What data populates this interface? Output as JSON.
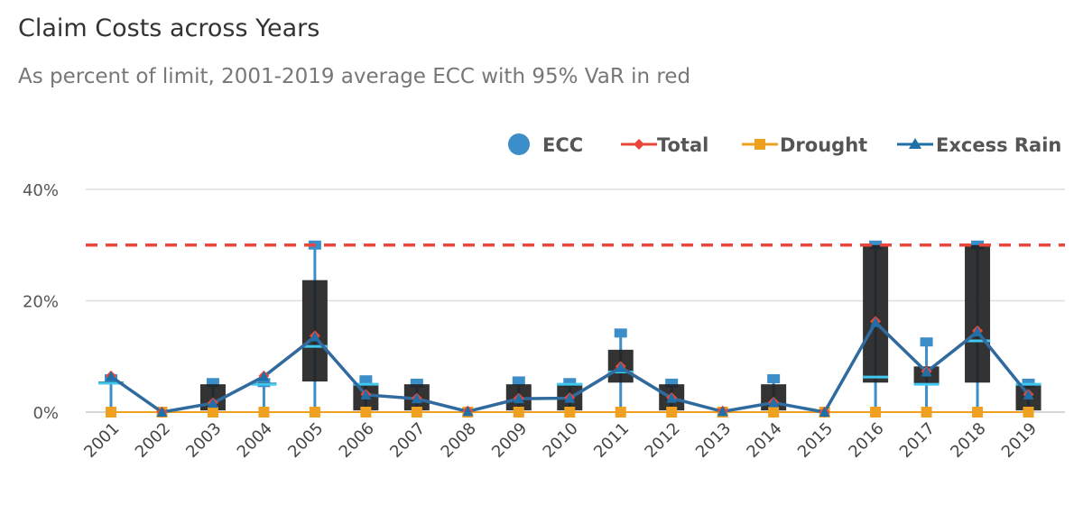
{
  "chart_data": {
    "type": "boxplot-line",
    "title": "Claim Costs across Years",
    "subtitle": "As percent of limit, 2001-2019 average ECC with 95% VaR in red",
    "xlabel": "",
    "ylabel": "",
    "ylim": [
      0,
      40
    ],
    "y_ticks": [
      {
        "value": 0,
        "label": "0%"
      },
      {
        "value": 20,
        "label": "20%"
      },
      {
        "value": 40,
        "label": "40%"
      }
    ],
    "var_line": 30,
    "grid": true,
    "legend_position": "top-right",
    "categories": [
      "2001",
      "2002",
      "2003",
      "2004",
      "2005",
      "2006",
      "2007",
      "2008",
      "2009",
      "2010",
      "2011",
      "2012",
      "2013",
      "2014",
      "2015",
      "2016",
      "2017",
      "2018",
      "2019"
    ],
    "legend": [
      {
        "name": "ECC",
        "marker": "circle",
        "color": "#3b8ec8"
      },
      {
        "name": "Total",
        "marker": "diamond",
        "color": "#e8483b"
      },
      {
        "name": "Drought",
        "marker": "square",
        "color": "#f0a020"
      },
      {
        "name": "Excess Rain",
        "marker": "triangle",
        "color": "#1f6fa8"
      }
    ],
    "boxes": [
      {
        "low": 0,
        "q1": 5.0,
        "median": 5.2,
        "q3": 5.5,
        "high": 6.0
      },
      {
        "low": 0,
        "q1": 0,
        "median": 0,
        "q3": 0,
        "high": 0
      },
      {
        "low": 0,
        "q1": 0.3,
        "median": 0.3,
        "q3": 5.0,
        "high": 5.3
      },
      {
        "low": 0,
        "q1": 5.0,
        "median": 5.0,
        "q3": 5.3,
        "high": 5.3
      },
      {
        "low": 0,
        "q1": 5.5,
        "median": 11.8,
        "q3": 23.7,
        "high": 30.0
      },
      {
        "low": 0,
        "q1": 0.3,
        "median": 5.0,
        "q3": 5.2,
        "high": 5.8
      },
      {
        "low": 0,
        "q1": 0.3,
        "median": 0.3,
        "q3": 5.0,
        "high": 5.2
      },
      {
        "low": 0,
        "q1": 0,
        "median": 0,
        "q3": 0,
        "high": 0
      },
      {
        "low": 0,
        "q1": 0.3,
        "median": 0.3,
        "q3": 5.0,
        "high": 5.6
      },
      {
        "low": 0,
        "q1": 0.3,
        "median": 5.0,
        "q3": 5.2,
        "high": 5.3
      },
      {
        "low": 0,
        "q1": 5.3,
        "median": 7.2,
        "q3": 11.2,
        "high": 14.2
      },
      {
        "low": 0,
        "q1": 0.3,
        "median": 0.3,
        "q3": 5.0,
        "high": 5.2
      },
      {
        "low": 0,
        "q1": 0,
        "median": 0,
        "q3": 0,
        "high": 0
      },
      {
        "low": 0,
        "q1": 0.3,
        "median": 0.3,
        "q3": 5.0,
        "high": 6.0
      },
      {
        "low": 0,
        "q1": 0,
        "median": 0,
        "q3": 0,
        "high": 0
      },
      {
        "low": 0,
        "q1": 5.3,
        "median": 6.3,
        "q3": 30.0,
        "high": 30.0
      },
      {
        "low": 0,
        "q1": 5.0,
        "median": 5.0,
        "q3": 8.2,
        "high": 12.6
      },
      {
        "low": 0,
        "q1": 5.3,
        "median": 12.8,
        "q3": 30.0,
        "high": 30.0
      },
      {
        "low": 0,
        "q1": 0.3,
        "median": 5.0,
        "q3": 5.0,
        "high": 5.2
      }
    ],
    "series": [
      {
        "name": "Total",
        "values": [
          6.5,
          0,
          1.7,
          6.5,
          13.7,
          3.2,
          2.5,
          0.2,
          2.5,
          2.6,
          8.2,
          2.6,
          0.2,
          1.8,
          0,
          16.3,
          7.3,
          14.6,
          3.2
        ]
      },
      {
        "name": "Excess Rain",
        "values": [
          6.4,
          0,
          1.6,
          6.4,
          13.5,
          3.1,
          2.4,
          0.1,
          2.4,
          2.5,
          8.0,
          2.5,
          0.1,
          1.7,
          0,
          16.1,
          7.2,
          14.4,
          3.1
        ]
      },
      {
        "name": "Drought",
        "values": [
          0,
          0,
          0,
          0,
          0,
          0,
          0,
          0,
          0,
          0,
          0,
          0,
          0,
          0,
          0,
          0,
          0,
          0,
          0
        ]
      }
    ]
  }
}
